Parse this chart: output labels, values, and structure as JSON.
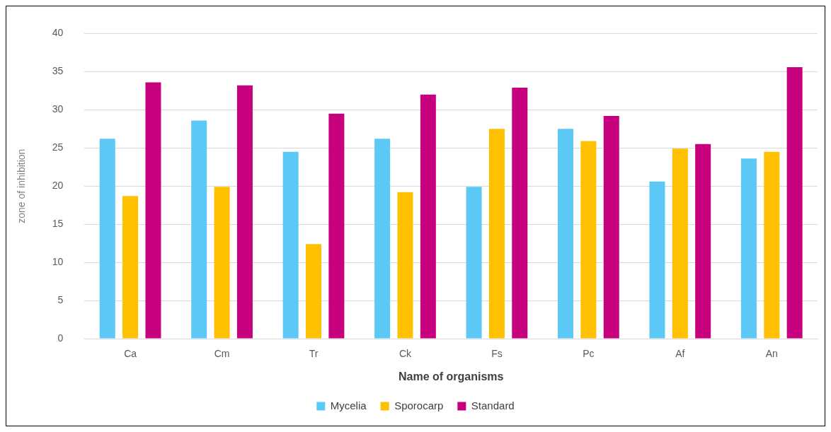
{
  "chart_data": {
    "type": "bar",
    "xlabel": "Name of organisms",
    "ylabel": "zone of inhibition",
    "categories": [
      "Ca",
      "Cm",
      "Tr",
      "Ck",
      "Fs",
      "Pc",
      "Af",
      "An"
    ],
    "series": [
      {
        "name": "Mycelia",
        "color": "#5bc8f5",
        "values": [
          26.2,
          28.6,
          24.5,
          26.2,
          19.9,
          27.5,
          20.6,
          23.6
        ]
      },
      {
        "name": "Sporocarp",
        "color": "#ffc000",
        "values": [
          18.7,
          19.9,
          12.4,
          19.2,
          27.5,
          25.9,
          24.9,
          24.5
        ]
      },
      {
        "name": "Standard",
        "color": "#c7007d",
        "values": [
          33.6,
          33.2,
          29.5,
          32.0,
          32.9,
          29.2,
          25.5,
          35.6
        ]
      }
    ],
    "ylim": [
      0,
      40
    ],
    "yticks": [
      0,
      5,
      10,
      15,
      20,
      25,
      30,
      35,
      40
    ],
    "grid": "y",
    "legend": "bottom"
  }
}
